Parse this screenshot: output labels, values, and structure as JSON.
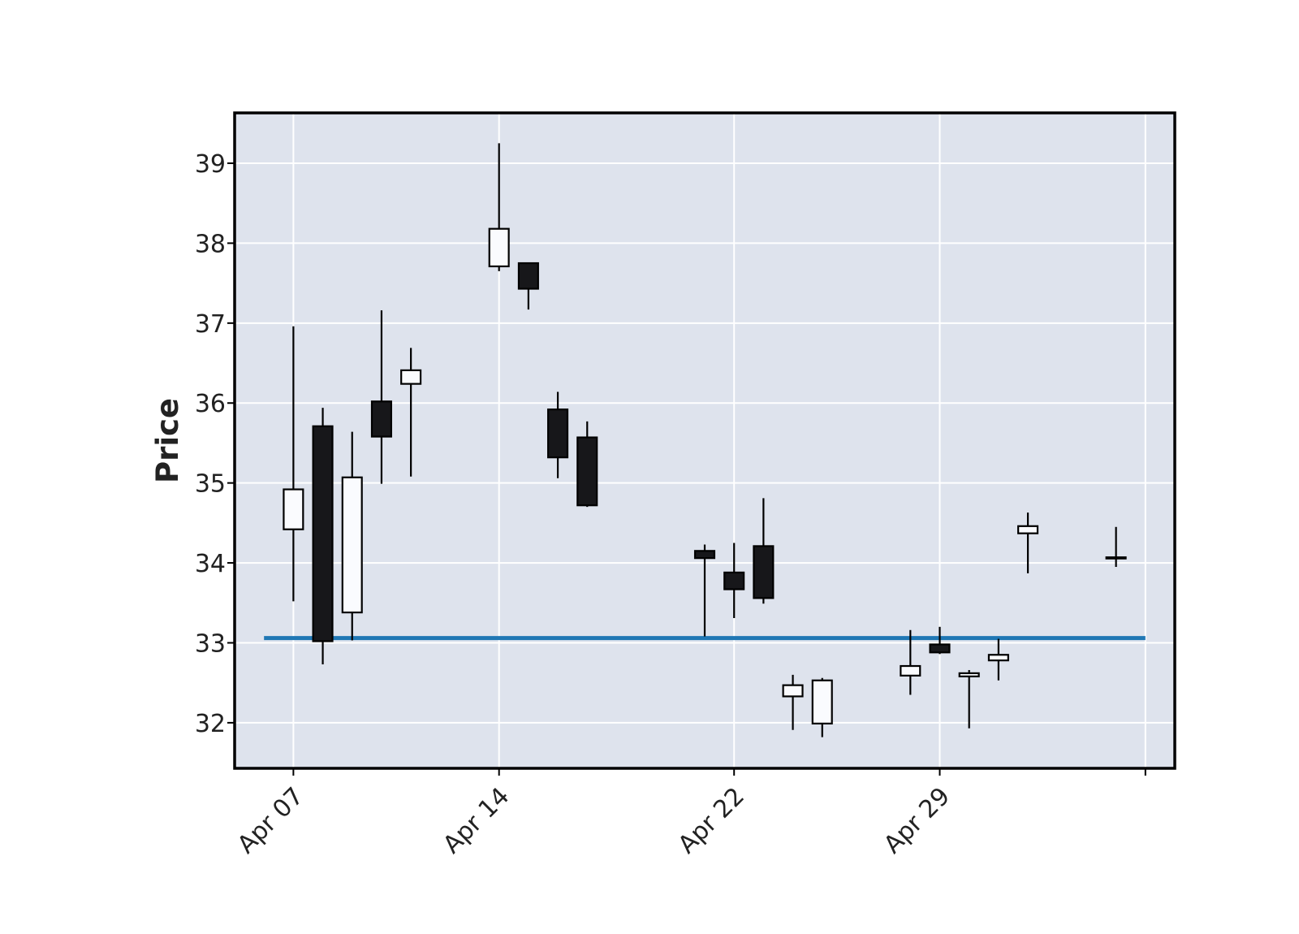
{
  "chart_data": {
    "type": "candlestick",
    "title": "",
    "xlabel": "",
    "ylabel": "Price",
    "ylim": [
      31.43,
      39.63
    ],
    "xlim": [
      "2025-04-05",
      "2025-05-07"
    ],
    "grid": true,
    "background_color": "#dee3ed",
    "grid_color": "#ffffff",
    "up_color": "#fafbfe",
    "down_color": "#17171a",
    "outline_color": "#000000",
    "yticks": [
      32,
      33,
      34,
      35,
      36,
      37,
      38,
      39
    ],
    "xticks": [
      {
        "date": "2025-04-07",
        "label": "Apr 07"
      },
      {
        "date": "2025-04-14",
        "label": "Apr 14"
      },
      {
        "date": "2025-04-22",
        "label": "Apr 22"
      },
      {
        "date": "2025-04-29",
        "label": "Apr 29"
      },
      {
        "date": "2025-05-06",
        "label": ""
      }
    ],
    "candles": [
      {
        "date": "2025-04-07",
        "open": 34.42,
        "high": 36.96,
        "low": 33.52,
        "close": 34.92
      },
      {
        "date": "2025-04-08",
        "open": 35.71,
        "high": 35.94,
        "low": 32.73,
        "close": 33.02
      },
      {
        "date": "2025-04-09",
        "open": 33.38,
        "high": 35.64,
        "low": 33.03,
        "close": 35.07
      },
      {
        "date": "2025-04-10",
        "open": 36.02,
        "high": 37.16,
        "low": 34.99,
        "close": 35.58
      },
      {
        "date": "2025-04-11",
        "open": 36.24,
        "high": 36.69,
        "low": 35.08,
        "close": 36.41
      },
      {
        "date": "2025-04-14",
        "open": 37.71,
        "high": 39.25,
        "low": 37.65,
        "close": 38.18
      },
      {
        "date": "2025-04-15",
        "open": 37.75,
        "high": 37.75,
        "low": 37.17,
        "close": 37.43
      },
      {
        "date": "2025-04-16",
        "open": 35.92,
        "high": 36.14,
        "low": 35.06,
        "close": 35.32
      },
      {
        "date": "2025-04-17",
        "open": 35.57,
        "high": 35.77,
        "low": 34.7,
        "close": 34.72
      },
      {
        "date": "2025-04-21",
        "open": 34.15,
        "high": 34.23,
        "low": 33.08,
        "close": 34.06
      },
      {
        "date": "2025-04-22",
        "open": 33.88,
        "high": 34.25,
        "low": 33.31,
        "close": 33.67
      },
      {
        "date": "2025-04-23",
        "open": 34.21,
        "high": 34.81,
        "low": 33.49,
        "close": 33.56
      },
      {
        "date": "2025-04-24",
        "open": 32.33,
        "high": 32.6,
        "low": 31.91,
        "close": 32.47
      },
      {
        "date": "2025-04-25",
        "open": 31.99,
        "high": 32.56,
        "low": 31.82,
        "close": 32.53
      },
      {
        "date": "2025-04-28",
        "open": 32.59,
        "high": 33.16,
        "low": 32.35,
        "close": 32.71
      },
      {
        "date": "2025-04-29",
        "open": 32.98,
        "high": 33.2,
        "low": 32.86,
        "close": 32.88
      },
      {
        "date": "2025-04-30",
        "open": 32.58,
        "high": 32.66,
        "low": 31.93,
        "close": 32.62
      },
      {
        "date": "2025-05-01",
        "open": 32.78,
        "high": 33.05,
        "low": 32.53,
        "close": 32.85
      },
      {
        "date": "2025-05-02",
        "open": 34.37,
        "high": 34.63,
        "low": 33.87,
        "close": 34.46
      },
      {
        "date": "2025-05-05",
        "open": 34.07,
        "high": 34.45,
        "low": 33.95,
        "close": 34.07
      }
    ],
    "hline": {
      "value": 33.06,
      "color": "#1f77b4",
      "x_start": "2025-04-06",
      "x_end": "2025-05-06"
    }
  }
}
